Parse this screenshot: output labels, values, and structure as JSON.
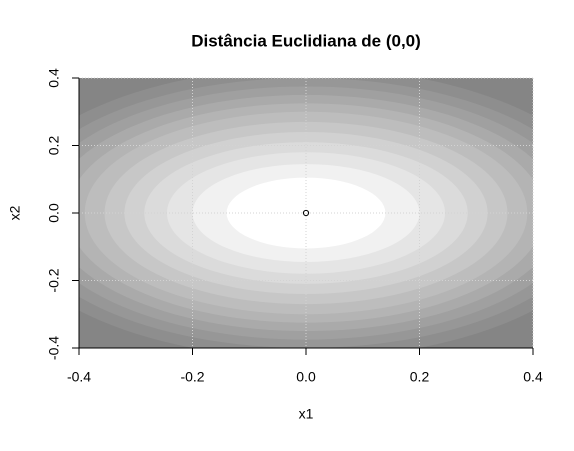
{
  "chart_data": {
    "type": "filled-ellipses",
    "title": "Distância Euclidiana de (0,0)",
    "x_label": "x1",
    "y_label": "x2",
    "xlim": [
      -0.4,
      0.4
    ],
    "ylim": [
      -0.4,
      0.4
    ],
    "xticks": [
      -0.4,
      -0.2,
      {
        "value": 0,
        "label": "0.0"
      },
      0.2,
      0.4
    ],
    "yticks": [
      -0.4,
      -0.2,
      {
        "value": 0,
        "label": "0.0"
      },
      0.2,
      0.4
    ],
    "grid": true,
    "background": "#858585",
    "bands": [
      {
        "rx": 0.54,
        "ry": 0.43,
        "color": "#8e8e8e"
      },
      {
        "rx": 0.51,
        "ry": 0.4,
        "color": "#979797"
      },
      {
        "rx": 0.48,
        "ry": 0.375,
        "color": "#a0a0a0"
      },
      {
        "rx": 0.45,
        "ry": 0.35,
        "color": "#aaaaaa"
      },
      {
        "rx": 0.42,
        "ry": 0.325,
        "color": "#b4b4b4"
      },
      {
        "rx": 0.39,
        "ry": 0.3,
        "color": "#bdbdbd"
      },
      {
        "rx": 0.355,
        "ry": 0.27,
        "color": "#c7c7c7"
      },
      {
        "rx": 0.32,
        "ry": 0.24,
        "color": "#d1d1d1"
      },
      {
        "rx": 0.285,
        "ry": 0.21,
        "color": "#dbdbdb"
      },
      {
        "rx": 0.245,
        "ry": 0.18,
        "color": "#e5e5e5"
      },
      {
        "rx": 0.2,
        "ry": 0.145,
        "color": "#f1f1f1"
      },
      {
        "rx": 0.14,
        "ry": 0.105,
        "color": "#ffffff"
      }
    ],
    "points": {
      "x": [
        0
      ],
      "y": [
        0
      ]
    }
  }
}
